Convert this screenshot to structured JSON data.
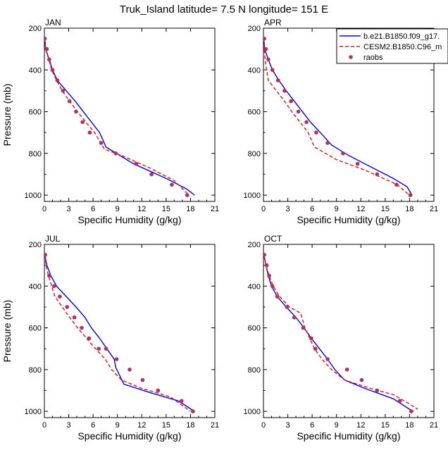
{
  "chart_data": {
    "type": "line",
    "title": "Truk_Island  latitude= 7.5 N longitude= 151 E",
    "xlabel": "Specific Humidity (g/kg)",
    "ylabel": "Pressure (mb)",
    "xlim": [
      0,
      21
    ],
    "ylim": [
      200,
      1030
    ],
    "y_inverted": true,
    "xticks": [
      "0",
      "3",
      "6",
      "9",
      "12",
      "15",
      "18",
      "21"
    ],
    "yticks": [
      "200",
      "400",
      "600",
      "800",
      "1000"
    ],
    "series_styles": [
      {
        "name": "b.e21.B1850.f09_g17.",
        "color": "#0000ff",
        "style": "solid"
      },
      {
        "name": "CESM2.B1850.C96_m",
        "color": "#ee1111",
        "style": "dashed"
      },
      {
        "name": "raobs",
        "color": "#b03060",
        "style": "markers"
      }
    ],
    "legend": {
      "placement": "top-right of APR panel",
      "entries": [
        "b.e21.B1850.f09_g17.",
        "CESM2.B1850.C96_m",
        "raobs"
      ]
    },
    "panels": [
      {
        "label": "JAN",
        "series": [
          {
            "name": "b.e21.B1850.f09_g17.",
            "points": [
              [
                0.05,
                250
              ],
              [
                0.15,
                300
              ],
              [
                0.6,
                350
              ],
              [
                1.0,
                400
              ],
              [
                1.6,
                450
              ],
              [
                2.7,
                500
              ],
              [
                3.8,
                550
              ],
              [
                4.8,
                600
              ],
              [
                5.8,
                650
              ],
              [
                6.8,
                700
              ],
              [
                7.6,
                770
              ],
              [
                11.0,
                850
              ],
              [
                15.0,
                920
              ],
              [
                17.5,
                970
              ],
              [
                18.5,
                1000
              ]
            ]
          },
          {
            "name": "CESM2.B1850.C96_m",
            "points": [
              [
                0.05,
                250
              ],
              [
                0.15,
                300
              ],
              [
                0.55,
                350
              ],
              [
                0.9,
                400
              ],
              [
                1.5,
                450
              ],
              [
                2.2,
                500
              ],
              [
                3.1,
                550
              ],
              [
                4.1,
                600
              ],
              [
                5.1,
                650
              ],
              [
                6.2,
                700
              ],
              [
                7.4,
                780
              ],
              [
                9.5,
                810
              ],
              [
                13.0,
                870
              ],
              [
                16.0,
                930
              ],
              [
                17.8,
                1000
              ]
            ]
          },
          {
            "name": "raobs",
            "points": [
              [
                0.05,
                250
              ],
              [
                0.3,
                300
              ],
              [
                0.6,
                350
              ],
              [
                1.0,
                400
              ],
              [
                1.6,
                450
              ],
              [
                2.3,
                500
              ],
              [
                3.1,
                550
              ],
              [
                3.9,
                600
              ],
              [
                4.7,
                650
              ],
              [
                5.6,
                700
              ],
              [
                7.0,
                750
              ],
              [
                8.8,
                800
              ],
              [
                11.3,
                850
              ],
              [
                13.2,
                900
              ],
              [
                15.7,
                950
              ],
              [
                17.6,
                1000
              ]
            ]
          }
        ]
      },
      {
        "label": "APR",
        "series": [
          {
            "name": "b.e21.B1850.f09_g17.",
            "points": [
              [
                0.05,
                250
              ],
              [
                0.15,
                300
              ],
              [
                0.6,
                350
              ],
              [
                1.1,
                400
              ],
              [
                1.9,
                450
              ],
              [
                2.8,
                500
              ],
              [
                3.8,
                550
              ],
              [
                4.8,
                600
              ],
              [
                5.8,
                650
              ],
              [
                7.0,
                700
              ],
              [
                8.4,
                760
              ],
              [
                10.5,
                810
              ],
              [
                13.5,
                870
              ],
              [
                16.0,
                920
              ],
              [
                17.7,
                960
              ],
              [
                18.3,
                1000
              ]
            ]
          },
          {
            "name": "CESM2.B1850.C96_m",
            "points": [
              [
                0.05,
                250
              ],
              [
                0.1,
                300
              ],
              [
                0.2,
                350
              ],
              [
                0.4,
                400
              ],
              [
                0.6,
                450
              ],
              [
                1.6,
                500
              ],
              [
                2.6,
                550
              ],
              [
                3.5,
                600
              ],
              [
                4.5,
                650
              ],
              [
                5.5,
                700
              ],
              [
                6.3,
                770
              ],
              [
                9.0,
                830
              ],
              [
                12.5,
                880
              ],
              [
                16.5,
                950
              ],
              [
                18.0,
                1000
              ]
            ]
          },
          {
            "name": "raobs",
            "points": [
              [
                0.1,
                250
              ],
              [
                0.3,
                300
              ],
              [
                0.6,
                350
              ],
              [
                1.1,
                400
              ],
              [
                1.8,
                450
              ],
              [
                2.6,
                500
              ],
              [
                3.4,
                550
              ],
              [
                4.3,
                600
              ],
              [
                5.3,
                650
              ],
              [
                6.5,
                700
              ],
              [
                7.9,
                750
              ],
              [
                9.8,
                800
              ],
              [
                11.6,
                850
              ],
              [
                14.0,
                900
              ],
              [
                16.4,
                950
              ],
              [
                18.1,
                1000
              ]
            ]
          }
        ]
      },
      {
        "label": "JUL",
        "series": [
          {
            "name": "b.e21.B1850.f09_g17.",
            "points": [
              [
                0.05,
                250
              ],
              [
                0.3,
                300
              ],
              [
                0.8,
                350
              ],
              [
                1.5,
                400
              ],
              [
                2.7,
                450
              ],
              [
                3.9,
                500
              ],
              [
                5.0,
                550
              ],
              [
                5.8,
                600
              ],
              [
                6.8,
                650
              ],
              [
                7.7,
                700
              ],
              [
                8.6,
                750
              ],
              [
                8.8,
                790
              ],
              [
                9.8,
                870
              ],
              [
                13.0,
                910
              ],
              [
                16.5,
                950
              ],
              [
                18.5,
                1000
              ]
            ]
          },
          {
            "name": "CESM2.B1850.C96_m",
            "points": [
              [
                0.05,
                250
              ],
              [
                0.2,
                300
              ],
              [
                0.5,
                350
              ],
              [
                0.9,
                400
              ],
              [
                1.3,
                450
              ],
              [
                2.2,
                500
              ],
              [
                3.1,
                550
              ],
              [
                4.1,
                600
              ],
              [
                5.2,
                650
              ],
              [
                6.3,
                700
              ],
              [
                7.5,
                750
              ],
              [
                8.3,
                800
              ],
              [
                9.5,
                850
              ],
              [
                12.0,
                890
              ],
              [
                15.5,
                930
              ],
              [
                18.0,
                1000
              ]
            ]
          },
          {
            "name": "raobs",
            "points": [
              [
                0.1,
                250
              ],
              [
                0.6,
                350
              ],
              [
                1.2,
                400
              ],
              [
                1.9,
                450
              ],
              [
                2.8,
                500
              ],
              [
                3.7,
                550
              ],
              [
                4.6,
                600
              ],
              [
                5.5,
                650
              ],
              [
                6.7,
                700
              ],
              [
                7.6,
                700
              ],
              [
                8.9,
                750
              ],
              [
                10.5,
                800
              ],
              [
                12.1,
                850
              ],
              [
                14.0,
                900
              ],
              [
                16.9,
                950
              ],
              [
                18.3,
                1000
              ]
            ]
          }
        ]
      },
      {
        "label": "OCT",
        "series": [
          {
            "name": "b.e21.B1850.f09_g17.",
            "points": [
              [
                0.05,
                250
              ],
              [
                0.3,
                300
              ],
              [
                0.6,
                350
              ],
              [
                1.0,
                400
              ],
              [
                1.7,
                450
              ],
              [
                2.8,
                500
              ],
              [
                4.0,
                550
              ],
              [
                5.0,
                600
              ],
              [
                5.9,
                650
              ],
              [
                6.9,
                700
              ],
              [
                7.9,
                750
              ],
              [
                8.8,
                800
              ],
              [
                10.0,
                850
              ],
              [
                12.5,
                890
              ],
              [
                16.0,
                940
              ],
              [
                18.0,
                990
              ],
              [
                18.5,
                1000
              ]
            ]
          },
          {
            "name": "CESM2.B1850.C96_m",
            "points": [
              [
                0.05,
                250
              ],
              [
                0.3,
                300
              ],
              [
                0.7,
                350
              ],
              [
                1.2,
                400
              ],
              [
                2.0,
                450
              ],
              [
                3.2,
                500
              ],
              [
                4.6,
                530
              ],
              [
                5.1,
                600
              ],
              [
                5.7,
                650
              ],
              [
                6.3,
                700
              ],
              [
                7.2,
                750
              ],
              [
                8.4,
                800
              ],
              [
                10.0,
                850
              ],
              [
                13.2,
                890
              ],
              [
                16.0,
                920
              ],
              [
                17.8,
                960
              ],
              [
                19.0,
                990
              ]
            ]
          },
          {
            "name": "raobs",
            "points": [
              [
                0.1,
                250
              ],
              [
                0.4,
                300
              ],
              [
                0.7,
                350
              ],
              [
                1.1,
                400
              ],
              [
                1.7,
                450
              ],
              [
                2.9,
                500
              ],
              [
                3.8,
                550
              ],
              [
                4.9,
                600
              ],
              [
                5.9,
                650
              ],
              [
                6.4,
                700
              ],
              [
                7.9,
                750
              ],
              [
                10.3,
                800
              ],
              [
                12.1,
                850
              ],
              [
                14.0,
                900
              ],
              [
                16.8,
                950
              ],
              [
                18.2,
                1000
              ]
            ]
          }
        ]
      }
    ]
  }
}
